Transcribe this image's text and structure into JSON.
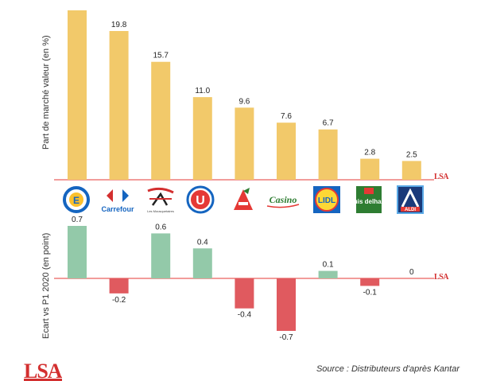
{
  "chart_data": [
    {
      "type": "bar",
      "title": "",
      "ylabel": "Part de marché valeur (en %)",
      "categories": [
        "Leclerc",
        "Carrefour",
        "Les Mousquetaires",
        "Système U",
        "Auchan",
        "Casino",
        "Lidl",
        "Louis Delhaize",
        "Aldi"
      ],
      "values": [
        null,
        19.8,
        15.7,
        11.0,
        9.6,
        7.6,
        6.7,
        2.8,
        2.5
      ],
      "value_labels": [
        "",
        "19.8",
        "15.7",
        "11.0",
        "9.6",
        "7.6",
        "6.7",
        "2.8",
        "2.5"
      ],
      "ylim": [
        0,
        22
      ],
      "bar_color": "#f2c96a",
      "grid": false
    },
    {
      "type": "bar",
      "title": "",
      "ylabel": "Ecart vs P1 2020 (en point)",
      "categories": [
        "Leclerc",
        "Carrefour",
        "Les Mousquetaires",
        "Système U",
        "Auchan",
        "Casino",
        "Lidl",
        "Louis Delhaize",
        "Aldi"
      ],
      "values": [
        0.7,
        -0.2,
        0.6,
        0.4,
        -0.4,
        -0.7,
        0.1,
        -0.1,
        0
      ],
      "value_labels": [
        "0.7",
        "-0.2",
        "0.6",
        "0.4",
        "-0.4",
        "-0.7",
        "0.1",
        "-0.1",
        "0"
      ],
      "ylim": [
        -0.7,
        0.7
      ],
      "positive_color": "#93c9a9",
      "negative_color": "#e05a5f",
      "grid": false
    }
  ],
  "logos": {
    "carrefour": "Carrefour",
    "mousquetaires": "Les Mousquetaires",
    "u": "U",
    "casino": "Casino",
    "lidl": "LIDL",
    "delhaize": "louis delhaize",
    "aldi": "ALDI",
    "leclerc": "E"
  },
  "branding": {
    "lsa": "LSA",
    "source": "Source : Distributeurs d'après Kantar"
  }
}
